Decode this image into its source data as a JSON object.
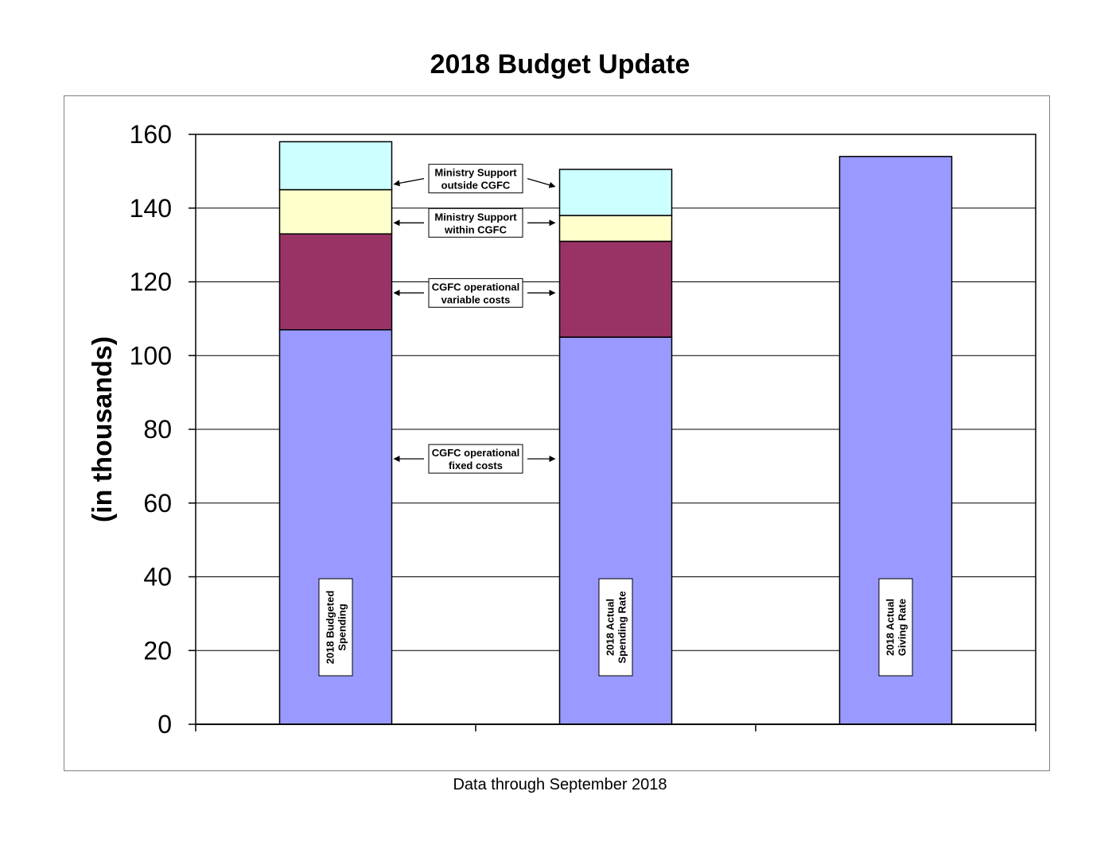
{
  "chart_data": {
    "type": "bar",
    "stacked": true,
    "title": "2018 Budget Update",
    "ylabel": "(in thousands)",
    "xlabel": "",
    "footer": "Data through September 2018",
    "ylim": [
      0,
      160
    ],
    "yticks": [
      0,
      20,
      40,
      60,
      80,
      100,
      120,
      140,
      160
    ],
    "grid": true,
    "bars": [
      {
        "label": "2018  Budgeted Spending",
        "label_lines": [
          "2018  Budgeted",
          "Spending"
        ],
        "segments": [
          {
            "name": "CGFC operational fixed costs",
            "value": 107,
            "color": "#9999ff"
          },
          {
            "name": "CGFC operational variable costs",
            "value": 26,
            "color": "#993366"
          },
          {
            "name": "Ministry Support within CGFC",
            "value": 12,
            "color": "#ffffcc"
          },
          {
            "name": "Ministry Support outside CGFC",
            "value": 13,
            "color": "#ccffff"
          }
        ]
      },
      {
        "label": "2018 Actual Spending Rate",
        "label_lines": [
          "2018 Actual",
          "Spending Rate"
        ],
        "segments": [
          {
            "name": "CGFC operational fixed costs",
            "value": 105,
            "color": "#9999ff"
          },
          {
            "name": "CGFC operational variable costs",
            "value": 26,
            "color": "#993366"
          },
          {
            "name": "Ministry Support within CGFC",
            "value": 7,
            "color": "#ffffcc"
          },
          {
            "name": "Ministry Support outside CGFC",
            "value": 12.5,
            "color": "#ccffff"
          }
        ]
      },
      {
        "label": "2018 Actual Giving Rate",
        "label_lines": [
          "2018 Actual",
          "Giving Rate"
        ],
        "segments": [
          {
            "name": "2018 Actual Giving Rate",
            "value": 154,
            "color": "#9999ff"
          }
        ]
      }
    ],
    "annotations": [
      {
        "lines": [
          "Ministry Support",
          "outside CGFC"
        ],
        "points_to": "Ministry Support outside CGFC",
        "y": 148
      },
      {
        "lines": [
          "Ministry Support",
          "within  CGFC"
        ],
        "points_to": "Ministry Support within CGFC",
        "y": 136
      },
      {
        "lines": [
          "CGFC operational",
          "variable costs"
        ],
        "points_to": "CGFC operational variable costs",
        "y": 117
      },
      {
        "lines": [
          "CGFC operational",
          "fixed costs"
        ],
        "points_to": "CGFC operational fixed costs",
        "y": 72
      }
    ]
  }
}
